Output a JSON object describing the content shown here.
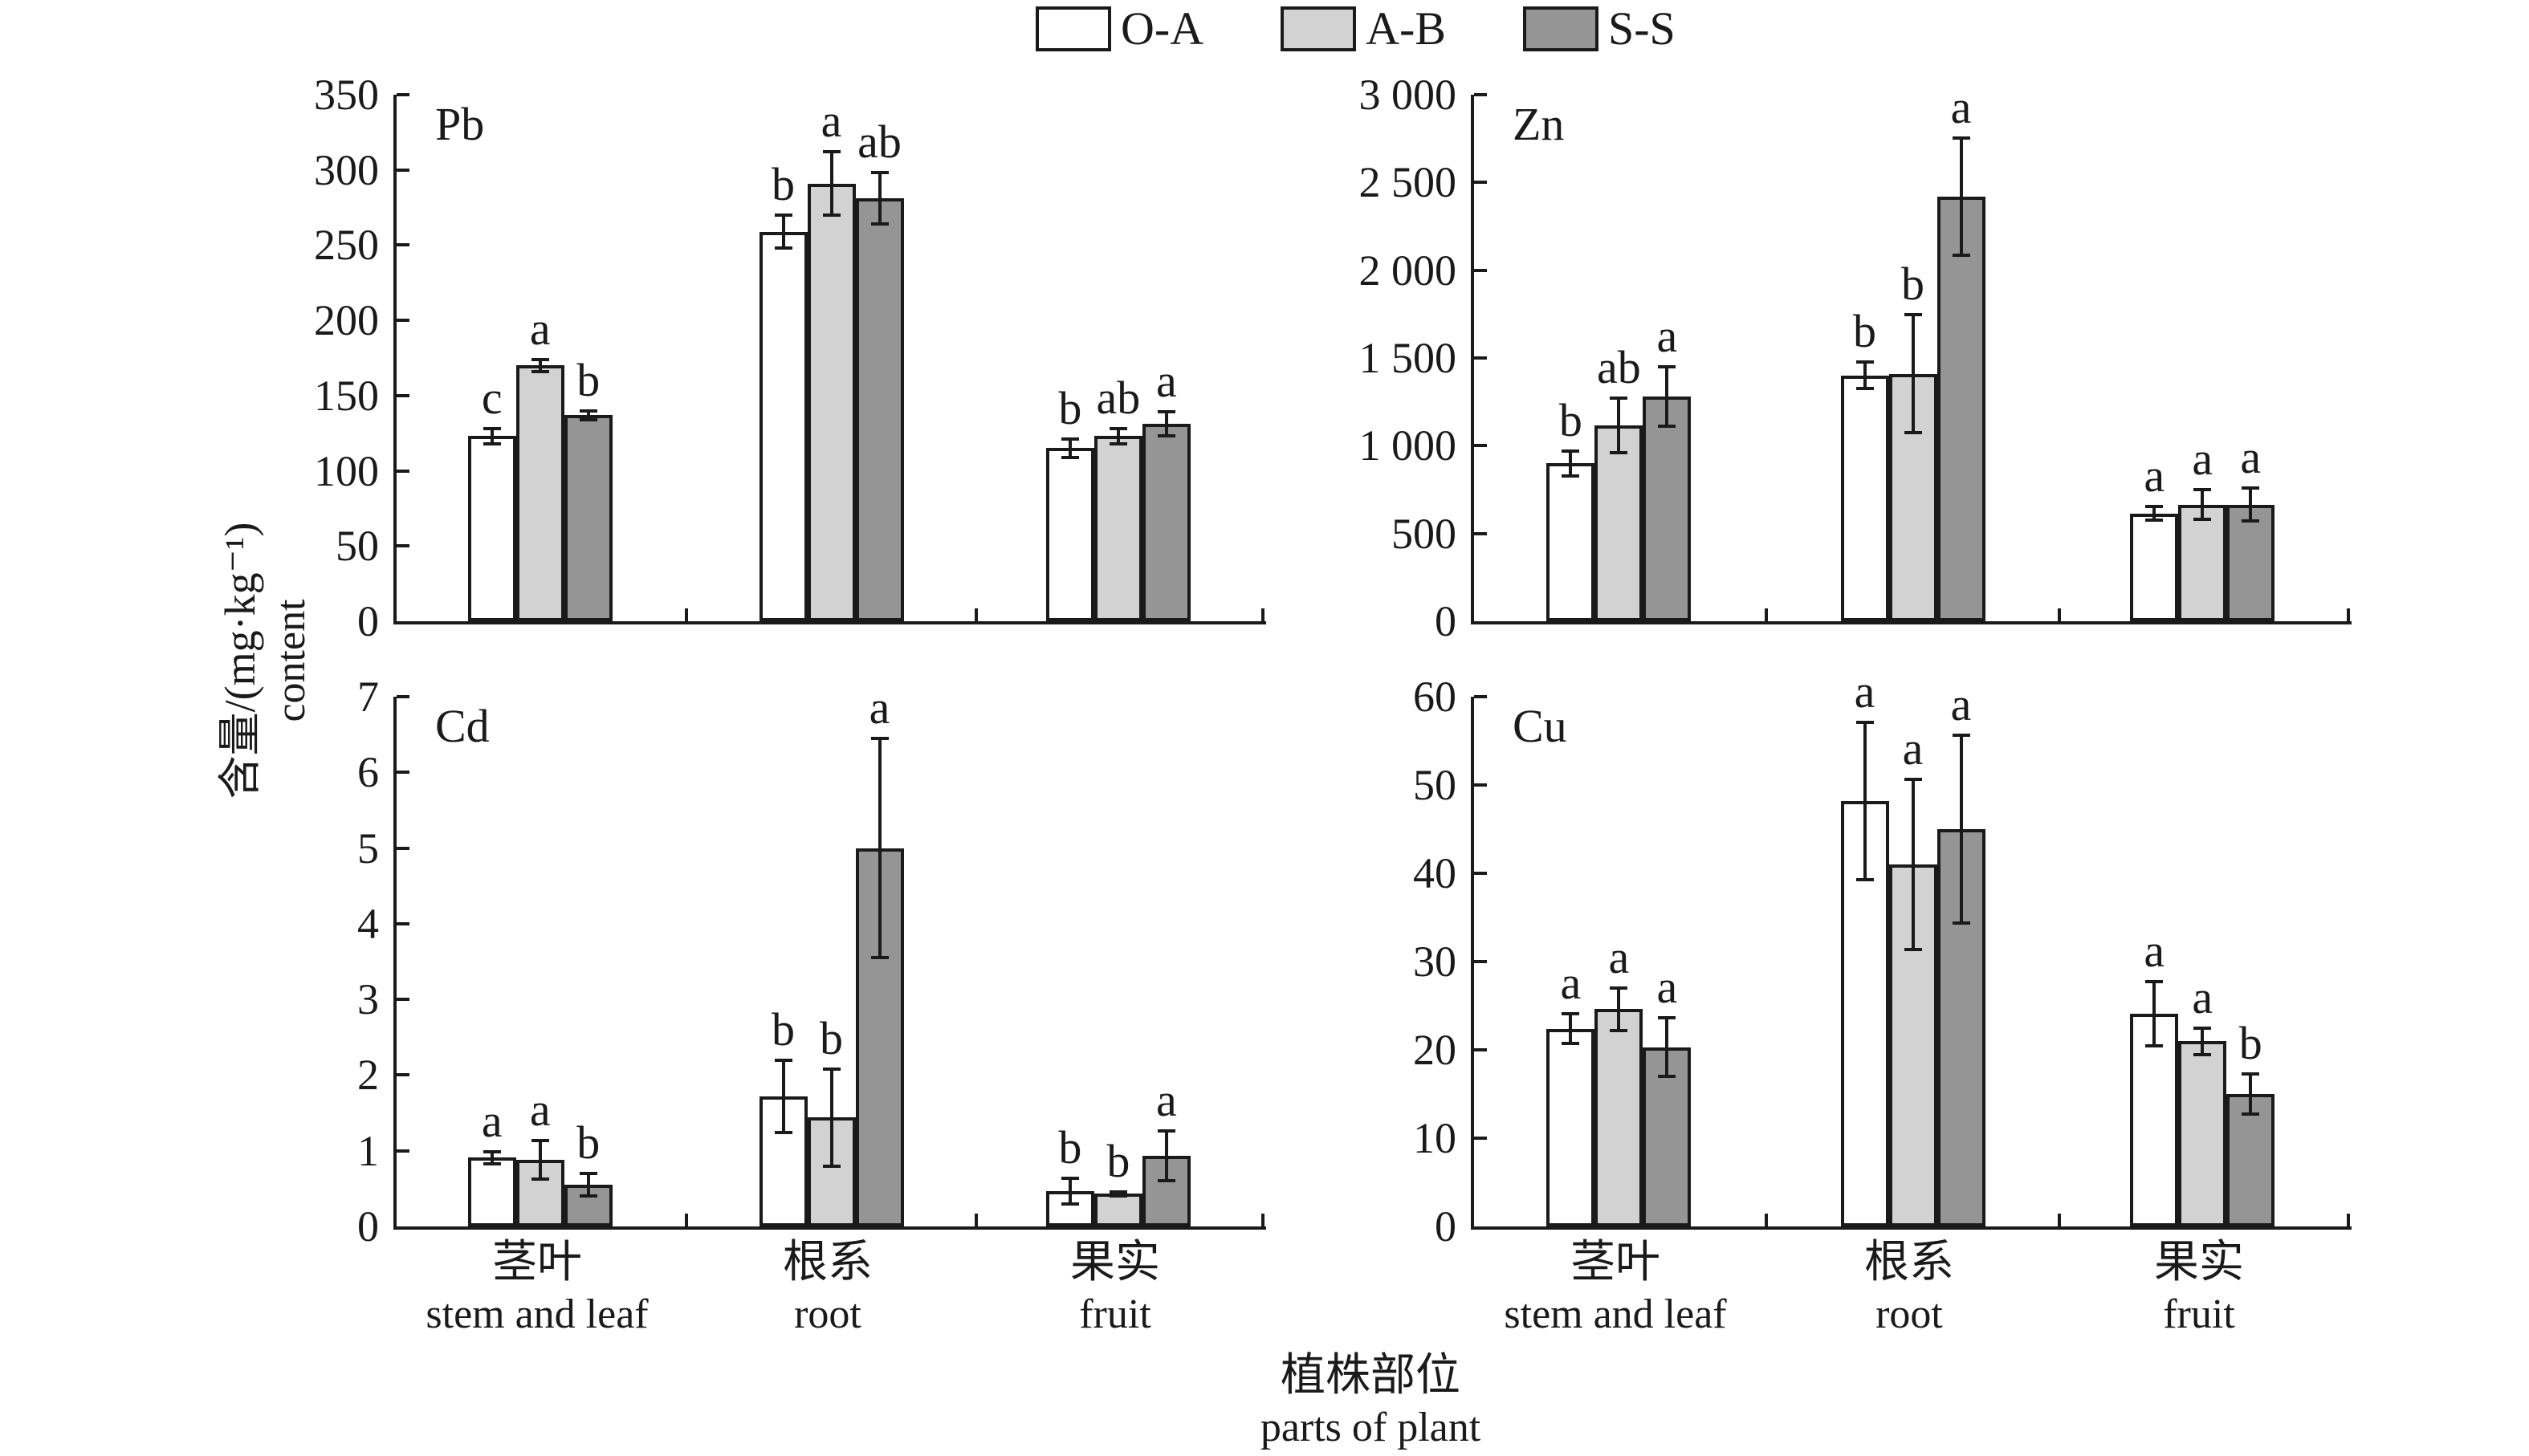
{
  "legend": {
    "items": [
      {
        "label": "O-A",
        "color": "#ffffff"
      },
      {
        "label": "A-B",
        "color": "#d2d2d2"
      },
      {
        "label": "S-S",
        "color": "#959595"
      }
    ]
  },
  "axis_labels": {
    "y_line1": "含量/(mg·kg⁻¹)",
    "y_line2": "content",
    "x_line1": "植株部位",
    "x_line2": "parts of plant"
  },
  "categories": [
    {
      "zh": "茎叶",
      "en": "stem and leaf"
    },
    {
      "zh": "根系",
      "en": "root"
    },
    {
      "zh": "果实",
      "en": "fruit"
    }
  ],
  "chart_data": [
    {
      "type": "bar",
      "title": "Pb",
      "ylabel": "含量/(mg·kg⁻¹) content",
      "xlabel": "植株部位 parts of plant",
      "categories": [
        "茎叶 stem and leaf",
        "根系 root",
        "果实 fruit"
      ],
      "ylim": [
        0,
        350
      ],
      "ytick_labels": [
        "0",
        "50",
        "100",
        "150",
        "200",
        "250",
        "300",
        "350"
      ],
      "grid": false,
      "legend_position": "top",
      "series": [
        {
          "name": "O-A",
          "values": [
            123,
            259,
            115
          ],
          "errors": [
            5,
            11,
            6
          ],
          "sig_letters": [
            "c",
            "b",
            "b"
          ]
        },
        {
          "name": "A-B",
          "values": [
            170,
            291,
            123
          ],
          "errors": [
            4,
            21,
            5
          ],
          "sig_letters": [
            "a",
            "a",
            "ab"
          ]
        },
        {
          "name": "S-S",
          "values": [
            137,
            281,
            131
          ],
          "errors": [
            3,
            17,
            8
          ],
          "sig_letters": [
            "b",
            "ab",
            "a"
          ]
        }
      ]
    },
    {
      "type": "bar",
      "title": "Zn",
      "ylabel": "含量/(mg·kg⁻¹) content",
      "xlabel": "植株部位 parts of plant",
      "categories": [
        "茎叶 stem and leaf",
        "根系 root",
        "果实 fruit"
      ],
      "ylim": [
        0,
        3000
      ],
      "ytick_labels": [
        "0",
        "500",
        "1 000",
        "1 500",
        "2 000",
        "2 500",
        "3 000"
      ],
      "grid": false,
      "legend_position": "top",
      "series": [
        {
          "name": "O-A",
          "values": [
            900,
            1400,
            615
          ],
          "errors": [
            70,
            75,
            40
          ],
          "sig_letters": [
            "b",
            "b",
            "a"
          ]
        },
        {
          "name": "A-B",
          "values": [
            1115,
            1410,
            665
          ],
          "errors": [
            155,
            335,
            85
          ],
          "sig_letters": [
            "ab",
            "b",
            "a"
          ]
        },
        {
          "name": "S-S",
          "values": [
            1280,
            2420,
            665
          ],
          "errors": [
            170,
            335,
            95
          ],
          "sig_letters": [
            "a",
            "a",
            "a"
          ]
        }
      ]
    },
    {
      "type": "bar",
      "title": "Cd",
      "ylabel": "含量/(mg·kg⁻¹) content",
      "xlabel": "植株部位 parts of plant",
      "categories": [
        "茎叶 stem and leaf",
        "根系 root",
        "果实 fruit"
      ],
      "ylim": [
        0,
        7
      ],
      "ytick_labels": [
        "0",
        "1",
        "2",
        "3",
        "4",
        "5",
        "6",
        "7"
      ],
      "grid": false,
      "legend_position": "top",
      "series": [
        {
          "name": "O-A",
          "values": [
            0.91,
            1.72,
            0.47
          ],
          "errors": [
            0.08,
            0.48,
            0.17
          ],
          "sig_letters": [
            "a",
            "b",
            "b"
          ]
        },
        {
          "name": "A-B",
          "values": [
            0.88,
            1.44,
            0.43
          ],
          "errors": [
            0.25,
            0.64,
            0.03
          ],
          "sig_letters": [
            "a",
            "b",
            "b"
          ]
        },
        {
          "name": "S-S",
          "values": [
            0.55,
            5.0,
            0.93
          ],
          "errors": [
            0.15,
            1.45,
            0.33
          ],
          "sig_letters": [
            "b",
            "a",
            "a"
          ]
        }
      ]
    },
    {
      "type": "bar",
      "title": "Cu",
      "ylabel": "含量/(mg·kg⁻¹) content",
      "xlabel": "植株部位 parts of plant",
      "categories": [
        "茎叶 stem and leaf",
        "根系 root",
        "果实 fruit"
      ],
      "ylim": [
        0,
        60
      ],
      "ytick_labels": [
        "0",
        "10",
        "20",
        "30",
        "40",
        "50",
        "60"
      ],
      "grid": false,
      "legend_position": "top",
      "series": [
        {
          "name": "O-A",
          "values": [
            22.4,
            48.2,
            24.1
          ],
          "errors": [
            1.7,
            8.9,
            3.6
          ],
          "sig_letters": [
            "a",
            "a",
            "a"
          ]
        },
        {
          "name": "A-B",
          "values": [
            24.6,
            41.0,
            21.0
          ],
          "errors": [
            2.4,
            9.6,
            1.5
          ],
          "sig_letters": [
            "a",
            "a",
            "a"
          ]
        },
        {
          "name": "S-S",
          "values": [
            20.3,
            45.0,
            15.0
          ],
          "errors": [
            3.3,
            10.6,
            2.3
          ],
          "sig_letters": [
            "a",
            "a",
            "b"
          ]
        }
      ]
    }
  ]
}
